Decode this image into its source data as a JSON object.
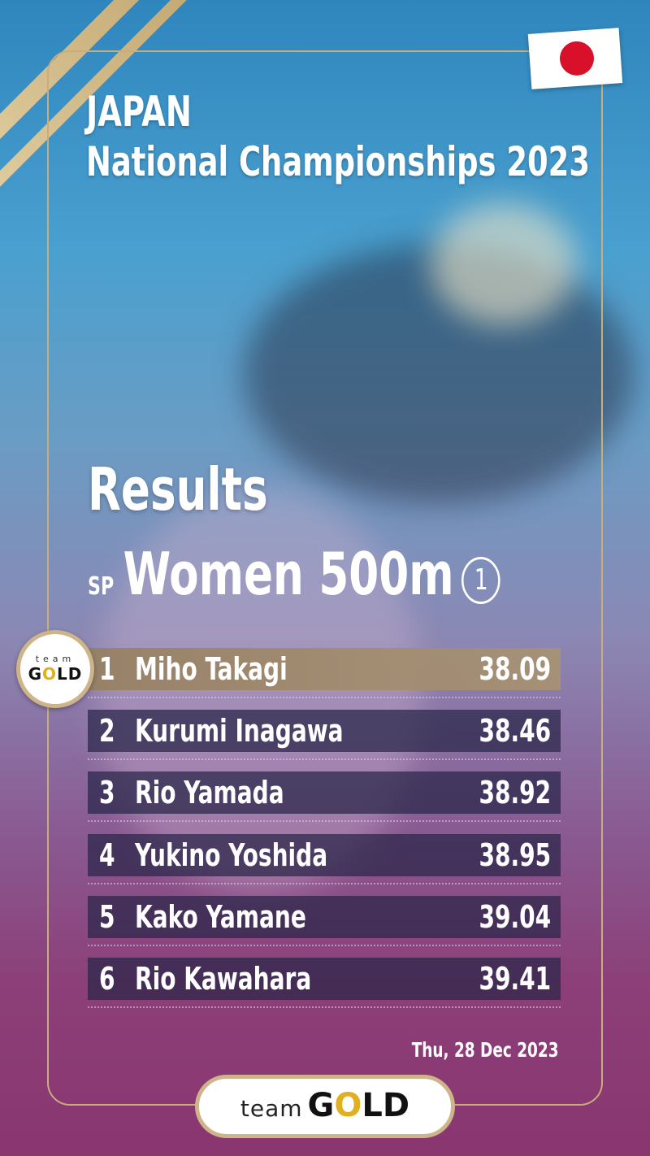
{
  "header": {
    "country": "JAPAN",
    "event_title": "National Championships 2023",
    "flag_icon": "japan-flag"
  },
  "section_title": "Results",
  "event": {
    "discipline": "SP",
    "name": "Women 500m",
    "race_number": "1"
  },
  "results": [
    {
      "rank": "1",
      "name": "Miho Takagi",
      "time": "38.09"
    },
    {
      "rank": "2",
      "name": "Kurumi Inagawa",
      "time": "38.46"
    },
    {
      "rank": "3",
      "name": "Rio Yamada",
      "time": "38.92"
    },
    {
      "rank": "4",
      "name": "Yukino Yoshida",
      "time": "38.95"
    },
    {
      "rank": "5",
      "name": "Kako Yamane",
      "time": "39.04"
    },
    {
      "rank": "6",
      "name": "Rio Kawahara",
      "time": "39.41"
    }
  ],
  "badge": {
    "small": "team",
    "big_pre": "G",
    "big_o": "O",
    "big_post": "LD"
  },
  "date": "Thu, 28 Dec 2023",
  "footer_logo": {
    "team": "team",
    "gold_pre": "G",
    "gold_o": "O",
    "gold_post": "LD"
  },
  "colors": {
    "gold": "#cdb48a",
    "accent_o": "#e0b020",
    "flag_red": "#d8102a"
  }
}
